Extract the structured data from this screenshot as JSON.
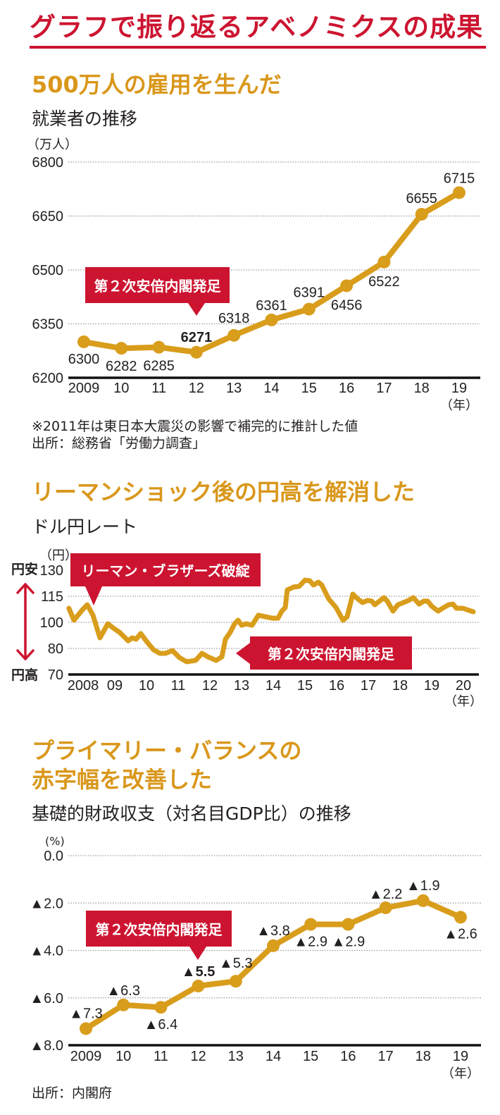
{
  "page_title": "グラフで振り返るアベノミクスの成果",
  "colors": {
    "accent_red": "#cc1430",
    "heading_gold": "#d9971b",
    "series_gold": "#d99d1c",
    "text": "#231f20"
  },
  "chart_data": [
    {
      "type": "line",
      "title": "500万人の雇用を生んだ",
      "subtitle": "就業者の推移",
      "y_unit": "（万人）",
      "x_unit": "（年）",
      "xlabel": "年",
      "ylabel": "万人",
      "categories": [
        "2009",
        "10",
        "11",
        "12",
        "13",
        "14",
        "15",
        "16",
        "17",
        "18",
        "19"
      ],
      "values": [
        6300,
        6282,
        6285,
        6271,
        6318,
        6361,
        6391,
        6456,
        6522,
        6655,
        6715
      ],
      "data_labels": [
        "6300",
        "6282",
        "6285",
        "6271",
        "6318",
        "6361",
        "6391",
        "6456",
        "6522",
        "6655",
        "6715"
      ],
      "emphasized_label": "6271",
      "yticks": [
        6800,
        6650,
        6500,
        6350,
        6200
      ],
      "ytick_labels": [
        "6800",
        "6650",
        "6500",
        "6350",
        "6200"
      ],
      "ylim": [
        6200,
        6800
      ],
      "grid": true,
      "annotation": {
        "text": "第２次安倍内閣発足",
        "category": "12"
      },
      "notes": [
        "※2011年は東日本大震災の影響で補完的に推計した値",
        "出所：総務省「労働力調査」"
      ]
    },
    {
      "type": "line",
      "title": "リーマンショック後の円高を解消した",
      "subtitle": "ドル円レート",
      "y_unit": "（円）",
      "x_unit": "（年）",
      "xlabel": "年",
      "ylabel": "円",
      "categories": [
        "2008",
        "09",
        "10",
        "11",
        "12",
        "13",
        "14",
        "15",
        "16",
        "17",
        "18",
        "19",
        "20"
      ],
      "x": [
        2008.04,
        2008.2,
        2008.47,
        2008.62,
        2008.8,
        2009.02,
        2009.27,
        2009.47,
        2009.64,
        2009.91,
        2010.04,
        2010.16,
        2010.31,
        2010.49,
        2010.71,
        2010.91,
        2011.09,
        2011.31,
        2011.53,
        2011.76,
        2012.04,
        2012.24,
        2012.42,
        2012.69,
        2012.87,
        2012.98,
        2013.13,
        2013.27,
        2013.38,
        2013.49,
        2013.64,
        2013.82,
        2014.02,
        2014.24,
        2014.47,
        2014.64,
        2014.76,
        2014.87,
        2014.93,
        2015.13,
        2015.31,
        2015.49,
        2015.64,
        2015.76,
        2015.91,
        2016.02,
        2016.24,
        2016.47,
        2016.69,
        2016.82,
        2017.0,
        2017.16,
        2017.31,
        2017.47,
        2017.6,
        2017.69,
        2017.87,
        2017.98,
        2018.09,
        2018.27,
        2018.42,
        2018.6,
        2018.76,
        2018.91,
        2019.09,
        2019.24,
        2019.36,
        2019.49,
        2019.69,
        2019.87,
        2020.02,
        2020.16,
        2020.27,
        2020.47,
        2020.6,
        2020.8
      ],
      "values": [
        108.1,
        101.2,
        107.3,
        110.1,
        104.1,
        88.1,
        98.9,
        95.1,
        92.4,
        85.9,
        88.1,
        87.0,
        91.4,
        85.4,
        79.5,
        78.1,
        78.1,
        79.2,
        76.5,
        74.9,
        75.4,
        78.1,
        76.8,
        75.4,
        76.8,
        87.0,
        92.4,
        98.9,
        101.2,
        97.8,
        98.9,
        97.8,
        104.1,
        103.2,
        102.4,
        102.4,
        106.5,
        108.5,
        118.6,
        120.3,
        120.7,
        124.3,
        123.9,
        121.5,
        123.1,
        121.5,
        113.4,
        108.5,
        101.2,
        103.2,
        116.2,
        113.4,
        111.4,
        112.6,
        112.2,
        110.1,
        112.6,
        114.2,
        112.2,
        106.5,
        110.1,
        111.4,
        112.6,
        114.2,
        110.5,
        112.2,
        112.2,
        109.3,
        106.5,
        108.5,
        110.1,
        110.5,
        108.1,
        108.1,
        107.3,
        106.1
      ],
      "yticks": [
        130,
        115,
        100,
        80,
        70
      ],
      "ytick_labels": [
        "130",
        "115",
        "100",
        "80",
        "70"
      ],
      "ylim": [
        70,
        130
      ],
      "grid": true,
      "direction_labels": {
        "up": "円安",
        "down": "円高"
      },
      "annotations": [
        {
          "text": "リーマン・ブラザーズ破綻",
          "x": 2008.8
        },
        {
          "text": "第２次安倍内閣発足",
          "x": 2012.9
        }
      ]
    },
    {
      "type": "line",
      "title_lines": [
        "プライマリー・バランスの",
        "赤字幅を改善した"
      ],
      "subtitle": "基礎的財政収支（対名目GDP比）の推移",
      "y_unit": "(%)",
      "x_unit": "（年）",
      "xlabel": "年",
      "ylabel": "%",
      "categories": [
        "2009",
        "10",
        "11",
        "12",
        "13",
        "14",
        "15",
        "16",
        "17",
        "18",
        "19"
      ],
      "values": [
        -7.3,
        -6.3,
        -6.4,
        -5.5,
        -5.3,
        -3.8,
        -2.9,
        -2.9,
        -2.2,
        -1.9,
        -2.6
      ],
      "data_labels": [
        "▲7.3",
        "▲6.3",
        "▲6.4",
        "▲5.5",
        "▲5.3",
        "▲3.8",
        "▲2.9",
        "▲2.9",
        "▲2.2",
        "▲1.9",
        "▲2.6"
      ],
      "emphasized_label": "▲5.5",
      "yticks": [
        0,
        -2,
        -4,
        -6,
        -8
      ],
      "ytick_labels": [
        "0.0",
        "▲2.0",
        "▲4.0",
        "▲6.0",
        "▲8.0"
      ],
      "ylim": [
        -8,
        0
      ],
      "grid": true,
      "annotation": {
        "text": "第２次安倍内閣発足",
        "category": "12"
      },
      "notes": [
        "出所：内閣府"
      ]
    }
  ]
}
